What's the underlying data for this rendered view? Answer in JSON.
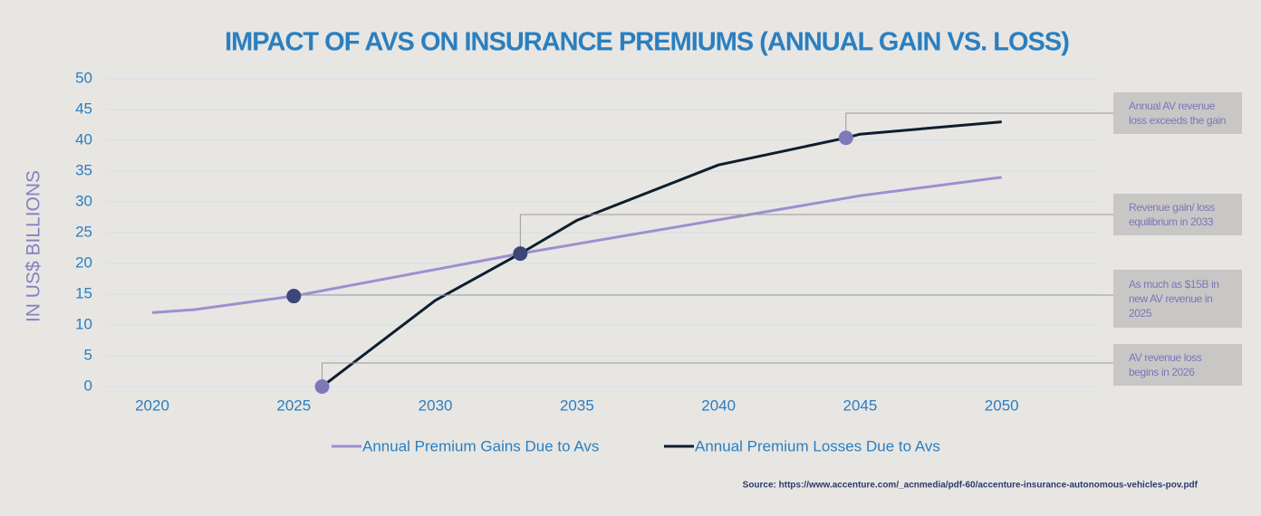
{
  "chart_data": {
    "type": "line",
    "title": "IMPACT OF AVS ON INSURANCE PREMIUMS (ANNUAL GAIN VS. LOSS)",
    "y_label": "IN US$ BILLIONS",
    "source": "Source: https://www.accenture.com/_acnmedia/pdf-60/accenture-insurance-autonomous-vehicles-pov.pdf",
    "xlim": [
      2018.4,
      2053.4
    ],
    "xticks": [
      2020,
      2025,
      2030,
      2035,
      2040,
      2045,
      2050
    ],
    "ylim": [
      0,
      50
    ],
    "yticks": [
      0,
      5,
      10,
      15,
      20,
      25,
      30,
      35,
      40,
      45,
      50
    ],
    "grid": true,
    "series": [
      {
        "name": "Annual Premium Gains Due to Avs",
        "color": "#9b90d0",
        "x": [
          2020,
          2021.5,
          2025,
          2033,
          2045,
          2050
        ],
        "values": [
          12,
          12.5,
          14.7,
          21.6,
          31,
          34
        ]
      },
      {
        "name": "Annual Premium Losses Due to Avs",
        "color": "#0d1e2e",
        "x": [
          2026,
          2030,
          2033,
          2035,
          2040,
          2044.5,
          2045,
          2050
        ],
        "values": [
          0,
          14,
          21.6,
          27,
          36,
          40.4,
          41,
          43
        ]
      }
    ],
    "markers": [
      {
        "x": 2044.5,
        "y": 40.4,
        "color": "#7f78b8",
        "label": "Annual AV revenue loss exceeds the gain"
      },
      {
        "x": 2033,
        "y": 21.6,
        "color": "#3d4678",
        "label": "Revenue gain/ loss equilibrium in 2033"
      },
      {
        "x": 2025,
        "y": 14.7,
        "color": "#3d4678",
        "label": "As much as $15B in new AV revenue in 2025"
      },
      {
        "x": 2026,
        "y": 0,
        "color": "#7f78b8",
        "label": "AV revenue loss begins in 2026"
      }
    ]
  }
}
